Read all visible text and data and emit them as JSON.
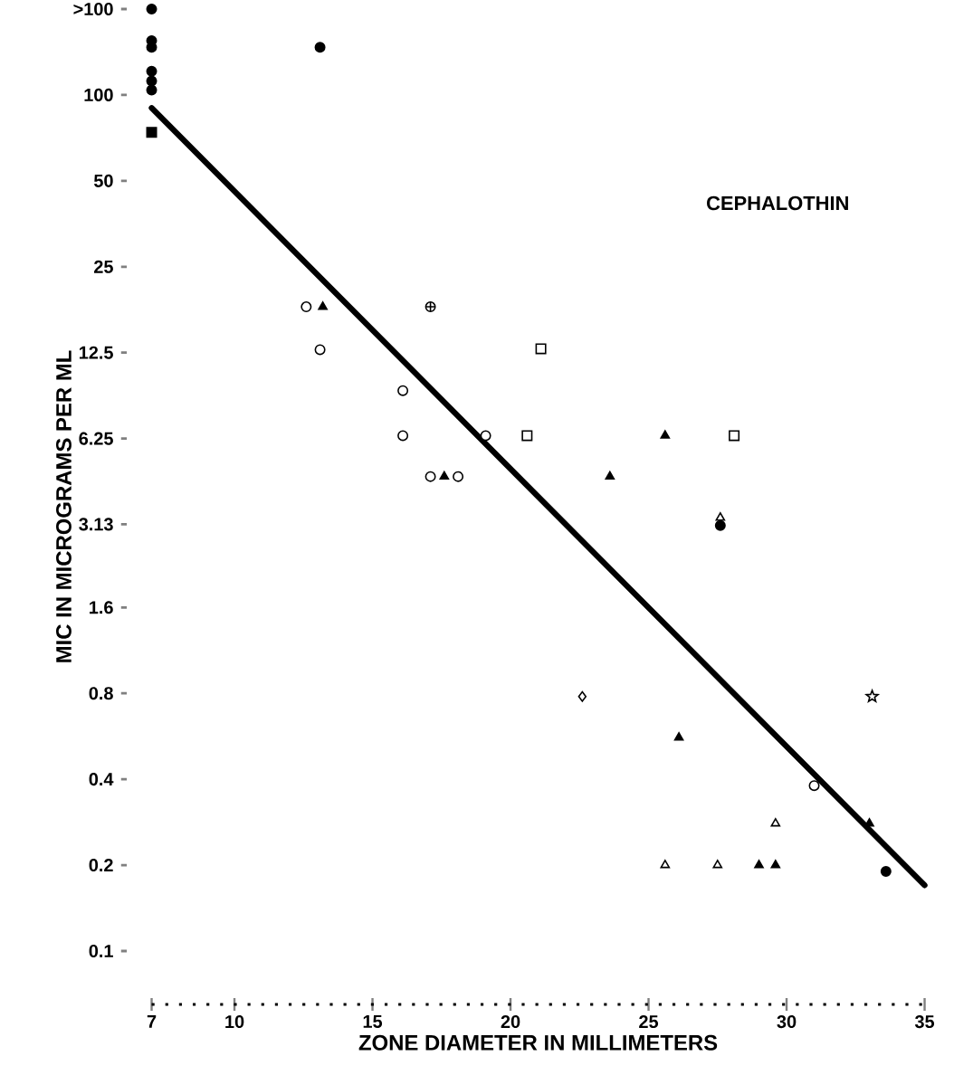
{
  "chart_data": {
    "type": "scatter",
    "title": "CEPHALOTHIN",
    "xlabel": "ZONE DIAMETER IN MILLIMETERS",
    "ylabel": "MIC IN MICROGRAMS PER ML",
    "log": "y",
    "grid": false,
    "xlim": [
      7,
      35
    ],
    "xticks": [
      7,
      10,
      15,
      20,
      25,
      30,
      35
    ],
    "ylim": [
      0.065,
      200
    ],
    "yticks": [
      0.1,
      0.2,
      0.4,
      0.8,
      1.6,
      3.13,
      6.25,
      12.5,
      25,
      50,
      100,
      {
        "value": 200,
        "label": ">100"
      }
    ],
    "series": [
      {
        "color": "#000000",
        "marker": "circle",
        "x": [
          7,
          7,
          7,
          7,
          7,
          7,
          13.1,
          27.6,
          33.6
        ],
        "values": [
          200,
          155,
          147,
          121,
          112,
          104,
          147,
          3.1,
          0.19
        ]
      },
      {
        "color": "#000000",
        "marker": "square",
        "x": [
          7
        ],
        "values": [
          74
        ]
      },
      {
        "color": "#ffffff",
        "marker": "circle",
        "x": [
          12.6,
          13.1,
          16.1,
          16.1,
          19.1,
          17.1,
          18.1,
          31.0
        ],
        "values": [
          18.1,
          12.8,
          9.2,
          6.4,
          6.4,
          4.6,
          4.6,
          0.38
        ]
      },
      {
        "color": "#000000",
        "marker": "triangle",
        "x": [
          13.2,
          17.6,
          23.6,
          25.6,
          26.1,
          29.0,
          29.6,
          33.0
        ],
        "values": [
          18.1,
          4.6,
          4.6,
          6.4,
          0.56,
          0.2,
          0.2,
          0.28
        ]
      },
      {
        "color": "#ffffff",
        "marker": "triangle",
        "x": [
          27.6,
          29.6,
          25.6,
          27.5
        ],
        "values": [
          3.3,
          0.28,
          0.2,
          0.2
        ]
      },
      {
        "color": "#ffffff",
        "marker": "square",
        "x": [
          21.1,
          20.6,
          28.1
        ],
        "values": [
          12.9,
          6.4,
          6.4
        ]
      },
      {
        "color": "#ffffff",
        "marker": "diamond",
        "x": [
          22.6
        ],
        "values": [
          0.78
        ]
      },
      {
        "color": "#ffffff",
        "marker": "star",
        "x": [
          33.1
        ],
        "values": [
          0.78
        ]
      },
      {
        "color": "#ffffff",
        "marker": "cross",
        "x": [
          17.1
        ],
        "values": [
          18.1
        ]
      },
      {
        "type": "line",
        "color": "#000000",
        "marker": "none",
        "line_style": "solid",
        "x": [
          7,
          35
        ],
        "values": [
          90,
          0.17
        ]
      }
    ]
  }
}
